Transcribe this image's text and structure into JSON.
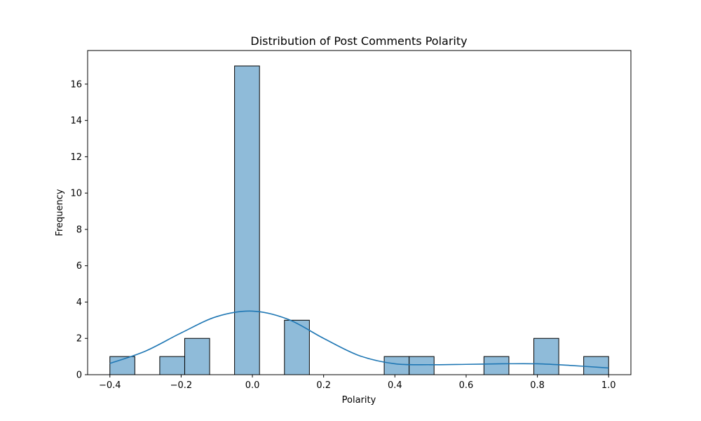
{
  "chart_data": {
    "type": "bar",
    "title": "Distribution of Post Comments Polarity",
    "xlabel": "Polarity",
    "ylabel": "Frequency",
    "xlim": [
      -0.4625,
      1.0625
    ],
    "ylim": [
      0,
      17.85
    ],
    "x_ticks": [
      -0.4,
      -0.2,
      0.0,
      0.2,
      0.4,
      0.6,
      0.8,
      1.0
    ],
    "x_tick_labels": [
      "−0.4",
      "−0.2",
      "0.0",
      "0.2",
      "0.4",
      "0.6",
      "0.8",
      "1.0"
    ],
    "y_ticks": [
      0,
      2,
      4,
      6,
      8,
      10,
      12,
      14,
      16
    ],
    "y_tick_labels": [
      "0",
      "2",
      "4",
      "6",
      "8",
      "10",
      "12",
      "14",
      "16"
    ],
    "bins": [
      {
        "x0": -0.4,
        "x1": -0.33,
        "count": 1
      },
      {
        "x0": -0.33,
        "x1": -0.26,
        "count": 0
      },
      {
        "x0": -0.26,
        "x1": -0.19,
        "count": 1
      },
      {
        "x0": -0.19,
        "x1": -0.12,
        "count": 2
      },
      {
        "x0": -0.12,
        "x1": -0.05,
        "count": 0
      },
      {
        "x0": -0.05,
        "x1": 0.02,
        "count": 17
      },
      {
        "x0": 0.02,
        "x1": 0.09,
        "count": 0
      },
      {
        "x0": 0.09,
        "x1": 0.16,
        "count": 3
      },
      {
        "x0": 0.16,
        "x1": 0.23,
        "count": 0
      },
      {
        "x0": 0.23,
        "x1": 0.3,
        "count": 0
      },
      {
        "x0": 0.3,
        "x1": 0.37,
        "count": 0
      },
      {
        "x0": 0.37,
        "x1": 0.44,
        "count": 1
      },
      {
        "x0": 0.44,
        "x1": 0.51,
        "count": 1
      },
      {
        "x0": 0.51,
        "x1": 0.58,
        "count": 0
      },
      {
        "x0": 0.58,
        "x1": 0.65,
        "count": 0
      },
      {
        "x0": 0.65,
        "x1": 0.72,
        "count": 1
      },
      {
        "x0": 0.72,
        "x1": 0.79,
        "count": 0
      },
      {
        "x0": 0.79,
        "x1": 0.86,
        "count": 2
      },
      {
        "x0": 0.86,
        "x1": 0.93,
        "count": 0
      },
      {
        "x0": 0.93,
        "x1": 1.0,
        "count": 1
      }
    ],
    "kde": {
      "x": [
        -0.4,
        -0.3,
        -0.2,
        -0.1,
        0.0,
        0.1,
        0.2,
        0.3,
        0.4,
        0.5,
        0.6,
        0.7,
        0.8,
        0.9,
        1.0
      ],
      "y": [
        0.62,
        1.3,
        2.3,
        3.2,
        3.5,
        3.05,
        2.0,
        1.05,
        0.6,
        0.55,
        0.57,
        0.6,
        0.6,
        0.5,
        0.37
      ]
    },
    "grid": false,
    "colors": {
      "bar_fill": "#8fbbd9",
      "bar_edge": "#000000",
      "kde_line": "#1f77b4",
      "axis": "#000000"
    }
  }
}
